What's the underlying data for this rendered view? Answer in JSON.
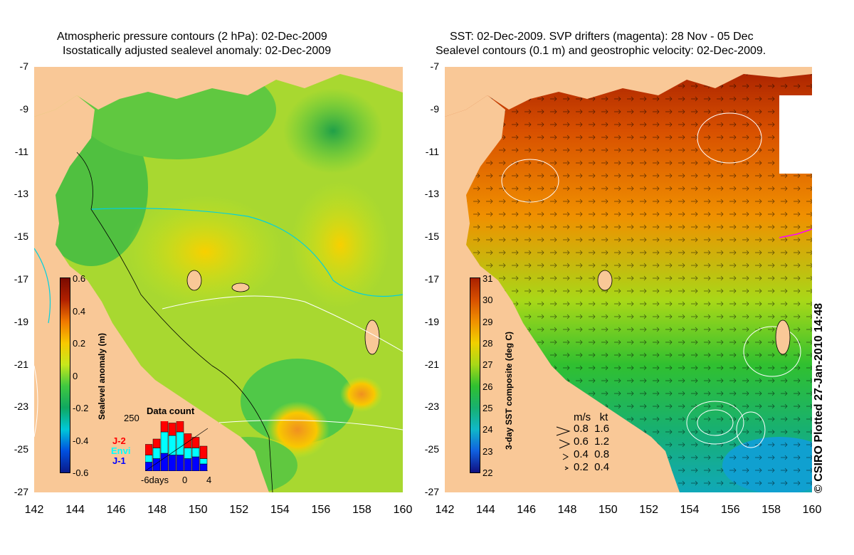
{
  "left_panel": {
    "title_line1": "Atmospheric pressure contours (2 hPa): 02-Dec-2009",
    "title_line2": "Isostatically adjusted sealevel anomaly: 02-Dec-2009",
    "colorbar": {
      "title": "Sealevel anomaly (m)",
      "ticks": [
        "0.6",
        "0.4",
        "0.2",
        "0",
        "-0.2",
        "-0.4",
        "-0.6"
      ]
    },
    "inset": {
      "title": "Data count",
      "max_label": "250",
      "x_labels": [
        "-6days",
        "0",
        "4"
      ],
      "sat_labels": [
        "J-2",
        "Envi",
        "J-1"
      ],
      "sat_colors": [
        "#ff0000",
        "#00ffff",
        "#0000ff"
      ],
      "bars": [
        {
          "j2": 30,
          "envi": 20,
          "j1": 25
        },
        {
          "j2": 25,
          "envi": 30,
          "j1": 35
        },
        {
          "j2": 40,
          "envi": 60,
          "j1": 50
        },
        {
          "j2": 35,
          "envi": 55,
          "j1": 45
        },
        {
          "j2": 30,
          "envi": 65,
          "j1": 45
        },
        {
          "j2": 40,
          "envi": 30,
          "j1": 35
        },
        {
          "j2": 30,
          "envi": 25,
          "j1": 40
        },
        {
          "j2": 35,
          "envi": 15,
          "j1": 20
        }
      ]
    }
  },
  "right_panel": {
    "title_line1": "SST: 02-Dec-2009. SVP drifters (magenta): 28 Nov - 05 Dec",
    "title_line2": "Sealevel contours (0.1 m) and geostrophic velocity: 02-Dec-2009.",
    "colorbar": {
      "title": "3-day SST composite (deg C)",
      "ticks": [
        "31",
        "30",
        "29",
        "28",
        "27",
        "26",
        "25",
        "24",
        "23",
        "22"
      ]
    },
    "velocity_legend": {
      "header": "m/s   kt",
      "rows": [
        "0.8  1.6",
        "0.6  1.2",
        "0.4  0.8",
        "0.2  0.4"
      ]
    }
  },
  "axes": {
    "x_ticks": [
      "142",
      "144",
      "146",
      "148",
      "150",
      "152",
      "154",
      "156",
      "158",
      "160"
    ],
    "y_ticks": [
      "-7",
      "-9",
      "-11",
      "-13",
      "-15",
      "-17",
      "-19",
      "-21",
      "-23",
      "-25",
      "-27"
    ],
    "lon_range": [
      142,
      160
    ],
    "lat_range": [
      -27,
      -7
    ]
  },
  "copyright": "© CSIRO Plotted 27-Jan-2010 14:48",
  "colors": {
    "land": "#f9c897",
    "sla_colormap": [
      "#0a1a8a",
      "#0050e0",
      "#00c8d8",
      "#10a860",
      "#40c840",
      "#c8e81c",
      "#f8c800",
      "#f07800",
      "#b02000",
      "#7a0a00"
    ],
    "sst_colormap": [
      "#101080",
      "#1060e0",
      "#10b8c8",
      "#18b070",
      "#30c030",
      "#a8d818",
      "#f0d000",
      "#f09000",
      "#d85000",
      "#a82000"
    ],
    "contour_white": "#ffffff",
    "contour_cyan": "#00d0e0"
  }
}
